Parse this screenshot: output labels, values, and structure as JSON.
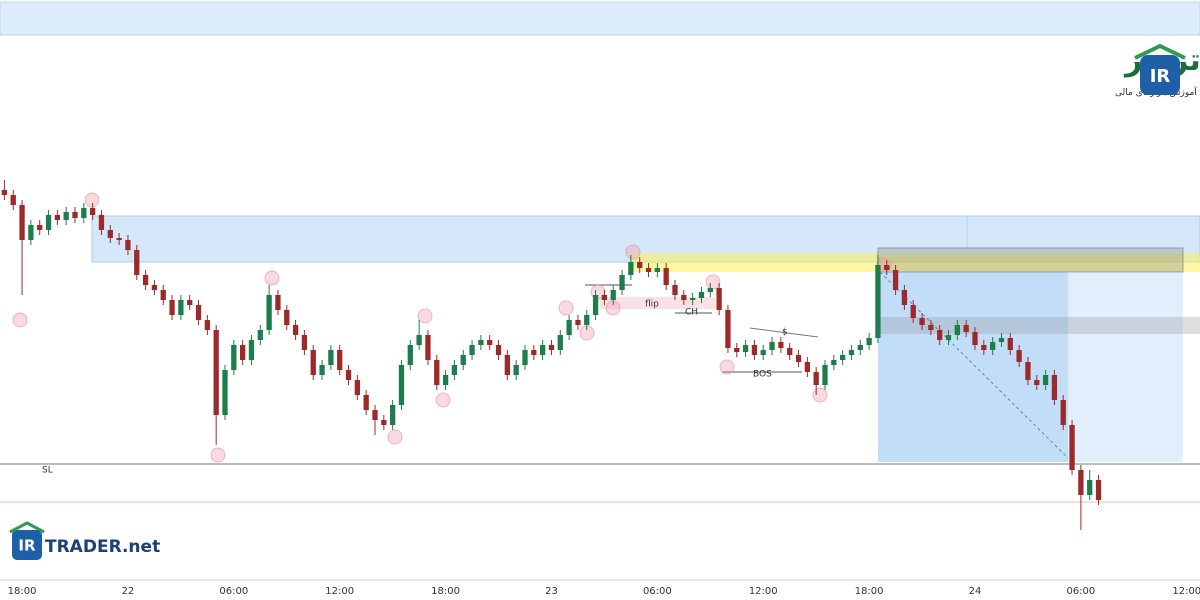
{
  "chart_data": {
    "type": "candlestick",
    "categories": [
      null,
      null,
      "18:00",
      null,
      null,
      null,
      null,
      null,
      null,
      null,
      null,
      null,
      null,
      null,
      "22",
      null,
      null,
      null,
      null,
      null,
      null,
      null,
      null,
      null,
      null,
      null,
      "06:00",
      null,
      null,
      null,
      null,
      null,
      null,
      null,
      null,
      null,
      null,
      null,
      "12:00",
      null,
      null,
      null,
      null,
      null,
      null,
      null,
      null,
      null,
      null,
      null,
      "18:00",
      null,
      null,
      null,
      null,
      null,
      null,
      null,
      null,
      null,
      null,
      null,
      "23",
      null,
      null,
      null,
      null,
      null,
      null,
      null,
      null,
      null,
      null,
      null,
      "06:00",
      null,
      null,
      null,
      null,
      null,
      null,
      null,
      null,
      null,
      null,
      null,
      "12:00",
      null,
      null,
      null,
      null,
      null,
      null,
      null,
      null,
      null,
      null,
      null,
      "18:00",
      null,
      null,
      null,
      null,
      null,
      null,
      null,
      null,
      null,
      null,
      null,
      "24",
      null,
      null,
      null,
      null,
      null,
      null,
      null,
      null,
      null,
      null,
      null,
      "06:00",
      null,
      null,
      null,
      null,
      null,
      null,
      null,
      null,
      null,
      null,
      null,
      "12:00",
      null
    ],
    "ohlc": [
      [
        410,
        420,
        400,
        405
      ],
      [
        405,
        410,
        390,
        395
      ],
      [
        395,
        400,
        305,
        360
      ],
      [
        360,
        380,
        355,
        375
      ],
      [
        375,
        380,
        365,
        370
      ],
      [
        370,
        390,
        365,
        385
      ],
      [
        385,
        390,
        375,
        380
      ],
      [
        380,
        393,
        375,
        388
      ],
      [
        388,
        393,
        377,
        382
      ],
      [
        382,
        397,
        377,
        392
      ],
      [
        392,
        397,
        380,
        385
      ],
      [
        385,
        390,
        365,
        370
      ],
      [
        370,
        375,
        357,
        362
      ],
      [
        362,
        367,
        355,
        360
      ],
      [
        360,
        365,
        345,
        350
      ],
      [
        350,
        355,
        320,
        325
      ],
      [
        325,
        330,
        310,
        315
      ],
      [
        315,
        320,
        305,
        310
      ],
      [
        310,
        315,
        295,
        300
      ],
      [
        300,
        305,
        280,
        285
      ],
      [
        285,
        305,
        280,
        300
      ],
      [
        300,
        305,
        290,
        295
      ],
      [
        295,
        300,
        275,
        280
      ],
      [
        280,
        285,
        265,
        270
      ],
      [
        270,
        275,
        155,
        185
      ],
      [
        185,
        235,
        180,
        230
      ],
      [
        230,
        260,
        225,
        255
      ],
      [
        255,
        260,
        235,
        240
      ],
      [
        240,
        265,
        235,
        260
      ],
      [
        260,
        275,
        255,
        270
      ],
      [
        270,
        315,
        265,
        305
      ],
      [
        305,
        310,
        285,
        290
      ],
      [
        290,
        295,
        270,
        275
      ],
      [
        275,
        280,
        260,
        265
      ],
      [
        265,
        270,
        245,
        250
      ],
      [
        250,
        255,
        220,
        225
      ],
      [
        225,
        240,
        220,
        235
      ],
      [
        235,
        255,
        230,
        250
      ],
      [
        250,
        255,
        225,
        230
      ],
      [
        230,
        235,
        215,
        220
      ],
      [
        220,
        225,
        200,
        205
      ],
      [
        205,
        210,
        185,
        190
      ],
      [
        190,
        195,
        165,
        180
      ],
      [
        180,
        185,
        170,
        175
      ],
      [
        175,
        200,
        170,
        195
      ],
      [
        195,
        240,
        190,
        235
      ],
      [
        235,
        260,
        230,
        255
      ],
      [
        255,
        280,
        250,
        265
      ],
      [
        265,
        270,
        235,
        240
      ],
      [
        240,
        245,
        210,
        215
      ],
      [
        215,
        230,
        210,
        225
      ],
      [
        225,
        240,
        220,
        235
      ],
      [
        235,
        250,
        230,
        245
      ],
      [
        245,
        260,
        240,
        255
      ],
      [
        255,
        265,
        250,
        260
      ],
      [
        260,
        265,
        250,
        255
      ],
      [
        255,
        260,
        240,
        245
      ],
      [
        245,
        250,
        220,
        225
      ],
      [
        225,
        240,
        220,
        235
      ],
      [
        235,
        255,
        230,
        250
      ],
      [
        250,
        255,
        240,
        245
      ],
      [
        245,
        260,
        240,
        255
      ],
      [
        255,
        260,
        245,
        250
      ],
      [
        250,
        270,
        245,
        265
      ],
      [
        265,
        285,
        260,
        280
      ],
      [
        280,
        285,
        270,
        275
      ],
      [
        275,
        290,
        270,
        285
      ],
      [
        285,
        310,
        280,
        305
      ],
      [
        305,
        310,
        295,
        300
      ],
      [
        300,
        315,
        295,
        310
      ],
      [
        310,
        330,
        305,
        325
      ],
      [
        325,
        345,
        320,
        338
      ],
      [
        338,
        343,
        327,
        332
      ],
      [
        332,
        337,
        323,
        328
      ],
      [
        328,
        337,
        323,
        332
      ],
      [
        332,
        337,
        310,
        315
      ],
      [
        315,
        320,
        300,
        305
      ],
      [
        305,
        310,
        295,
        300
      ],
      [
        300,
        307,
        295,
        302
      ],
      [
        302,
        313,
        297,
        308
      ],
      [
        308,
        317,
        303,
        312
      ],
      [
        312,
        317,
        285,
        290
      ],
      [
        290,
        295,
        247,
        252
      ],
      [
        252,
        257,
        243,
        248
      ],
      [
        248,
        260,
        243,
        255
      ],
      [
        255,
        260,
        240,
        245
      ],
      [
        245,
        255,
        240,
        250
      ],
      [
        250,
        263,
        245,
        258
      ],
      [
        258,
        263,
        247,
        252
      ],
      [
        252,
        257,
        240,
        245
      ],
      [
        245,
        250,
        233,
        238
      ],
      [
        238,
        243,
        223,
        228
      ],
      [
        228,
        233,
        205,
        215
      ],
      [
        215,
        240,
        210,
        235
      ],
      [
        235,
        245,
        230,
        240
      ],
      [
        240,
        250,
        235,
        245
      ],
      [
        245,
        255,
        240,
        250
      ],
      [
        250,
        260,
        245,
        255
      ],
      [
        255,
        267,
        250,
        262
      ],
      [
        262,
        345,
        257,
        335
      ],
      [
        335,
        340,
        325,
        330
      ],
      [
        330,
        335,
        305,
        310
      ],
      [
        310,
        315,
        290,
        295
      ],
      [
        295,
        300,
        277,
        282
      ],
      [
        282,
        287,
        270,
        275
      ],
      [
        275,
        280,
        265,
        270
      ],
      [
        270,
        275,
        255,
        260
      ],
      [
        260,
        270,
        255,
        265
      ],
      [
        265,
        280,
        260,
        275
      ],
      [
        275,
        280,
        263,
        268
      ],
      [
        268,
        273,
        250,
        255
      ],
      [
        255,
        260,
        245,
        250
      ],
      [
        250,
        263,
        245,
        258
      ],
      [
        258,
        267,
        253,
        262
      ],
      [
        262,
        267,
        245,
        250
      ],
      [
        250,
        255,
        233,
        238
      ],
      [
        238,
        243,
        215,
        220
      ],
      [
        220,
        225,
        210,
        215
      ],
      [
        215,
        230,
        210,
        225
      ],
      [
        225,
        230,
        195,
        200
      ],
      [
        200,
        205,
        170,
        175
      ],
      [
        175,
        180,
        125,
        130
      ],
      [
        130,
        135,
        70,
        105
      ],
      [
        105,
        130,
        100,
        120
      ],
      [
        120,
        125,
        95,
        100
      ],
      null,
      null,
      null,
      null,
      null,
      null,
      null,
      null,
      null,
      null,
      null
    ],
    "up_color": "#1e7d4c",
    "down_color": "#9c2a2a",
    "ylim": [
      20,
      600
    ],
    "annotations": [
      "flip",
      "CH",
      "BOS",
      "$",
      "SL"
    ],
    "watermark": {
      "title": "ایران تریدر",
      "subtitle": "مرجع آموزش بازارهای مالی",
      "mark": "IR",
      "brand_mark": "IR",
      "brand": "TRADER.net"
    }
  }
}
